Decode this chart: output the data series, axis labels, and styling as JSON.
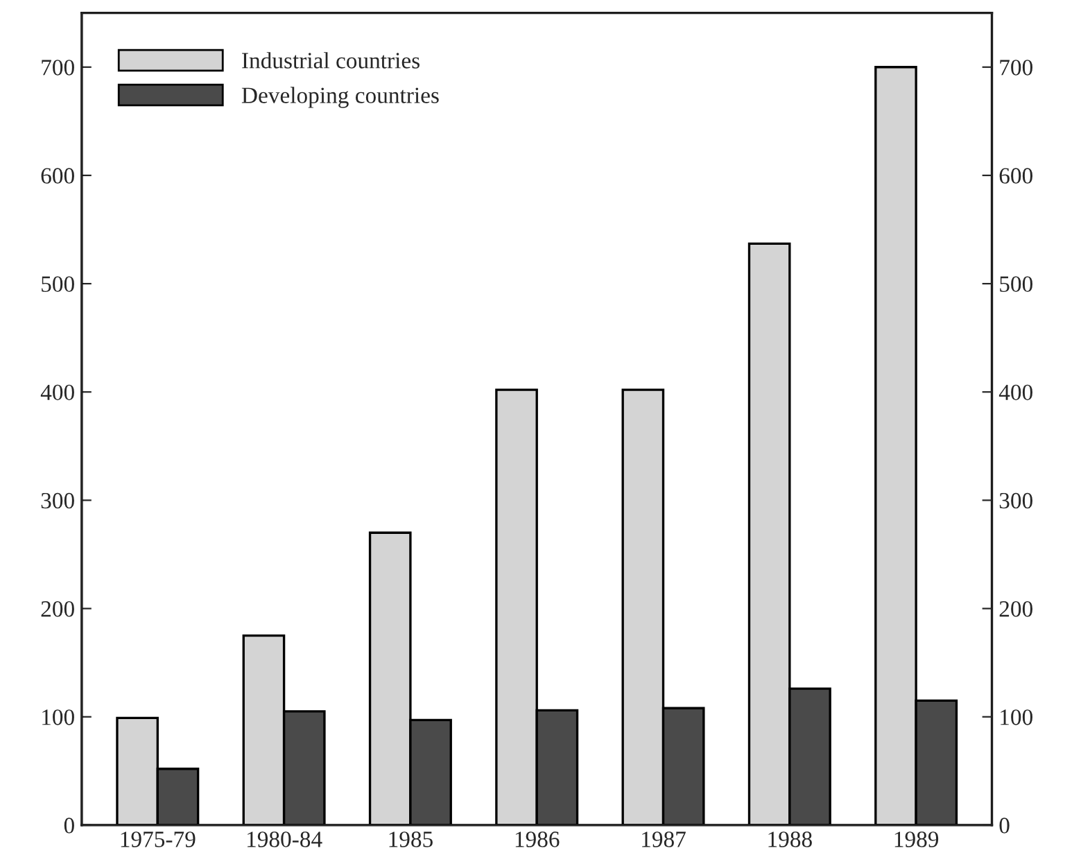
{
  "chart_data": {
    "type": "bar",
    "categories": [
      "1975-79",
      "1980-84",
      "1985",
      "1986",
      "1987",
      "1988",
      "1989"
    ],
    "series": [
      {
        "name": "Industrial countries",
        "color": "#d4d4d4",
        "values": [
          99,
          175,
          270,
          402,
          402,
          537,
          700
        ]
      },
      {
        "name": "Developing countries",
        "color": "#4a4a4a",
        "values": [
          52,
          105,
          97,
          106,
          108,
          126,
          115
        ]
      }
    ],
    "ylim": [
      0,
      750
    ],
    "yticks": [
      0,
      100,
      200,
      300,
      400,
      500,
      600,
      700
    ],
    "y2lim": [
      0,
      750
    ],
    "y2ticks": [
      0,
      100,
      200,
      300,
      400,
      500,
      600,
      700
    ],
    "legend": "top left",
    "grid": false
  }
}
